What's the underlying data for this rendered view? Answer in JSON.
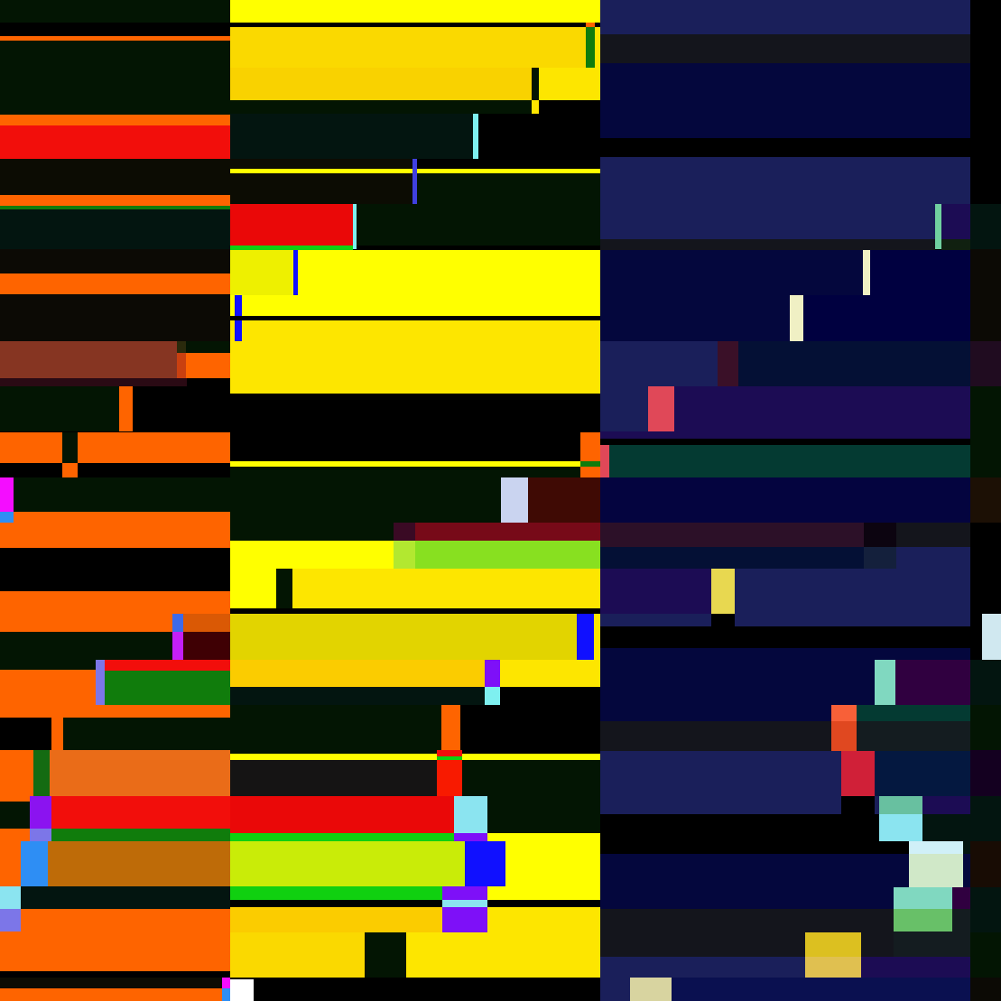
{
  "background": "#000000",
  "palette": {
    "dg": "#031503",
    "bk": "#000000",
    "or": "#fe6400",
    "rd": "#f20e0b",
    "br": "#0c0c03",
    "gr": "#107c0c",
    "dt": "#031510",
    "rust": "#863522",
    "ol": "#2a2a0c",
    "or2": "#c94010",
    "plum": "#2a0a14",
    "mg": "#f40dff",
    "az": "#2e8ef4",
    "bl": "#3e6ae8",
    "vi": "#c41ff8",
    "mar": "#3f0004",
    "lav": "#7c76e8",
    "or3": "#da5905",
    "ogr": "#146b12",
    "ob": "#ea6c18",
    "pu": "#8b13f0",
    "tan": "#be6b08",
    "cy": "#8be4f0",
    "ye": "#ffff00",
    "gd": "#fad900",
    "yg": "#fde600",
    "blue": "#1010ff",
    "lcy": "#7ef0f0",
    "lb2": "#4040e0",
    "rd2": "#ea0808",
    "lg": "#10d010",
    "lym": "#eef000",
    "pale": "#cad4f0",
    "mar2": "#3f0a04",
    "wine": "#3a0a24",
    "crim": "#770a18",
    "ly": "#b2e830",
    "lime": "#88e020",
    "ol2": "#e2d400",
    "amb": "#fbcc00",
    "vio2": "#7e10f8",
    "blk2": "#151414",
    "rd3": "#f81a00",
    "lime2": "#c9ec08",
    "wh": "#ffffff",
    "nv": "#1a1f5a",
    "ch": "#14151c",
    "ink": "#04073d",
    "mint": "#70d0a0",
    "indi": "#1c0c54",
    "dkg": "#102010",
    "cream": "#f0f0c4",
    "nvd": "#000040",
    "burg": "#3a1028",
    "mid": "#041035",
    "coral": "#e04858",
    "tealk": "#043a32",
    "ink2": "#04043f",
    "pm": "#2c1028",
    "vd": "#0c0410",
    "sl": "#14203c",
    "mustard": "#e8d850",
    "seaf": "#80d8c0",
    "purd": "#300040",
    "salm": "#f86038",
    "rust2": "#e04820",
    "gch": "#141c20",
    "crim2": "#d02038",
    "nvy2": "#041840",
    "jade": "#68c0a0",
    "ice": "#d0f0f8",
    "sage": "#d0e8c8",
    "leaf": "#68c068",
    "gold2": "#dcc020",
    "sand": "#e0c050",
    "nvb": "#0a1050",
    "khaki": "#d8d4a0",
    "dbr": "#0c0a05",
    "pp": "#200c20",
    "dbr2": "#1c1005",
    "ice2": "#d0e8f0",
    "bp": "#140020",
    "dbr3": "#180c04",
    "gd2": "#f9d200"
  }
}
